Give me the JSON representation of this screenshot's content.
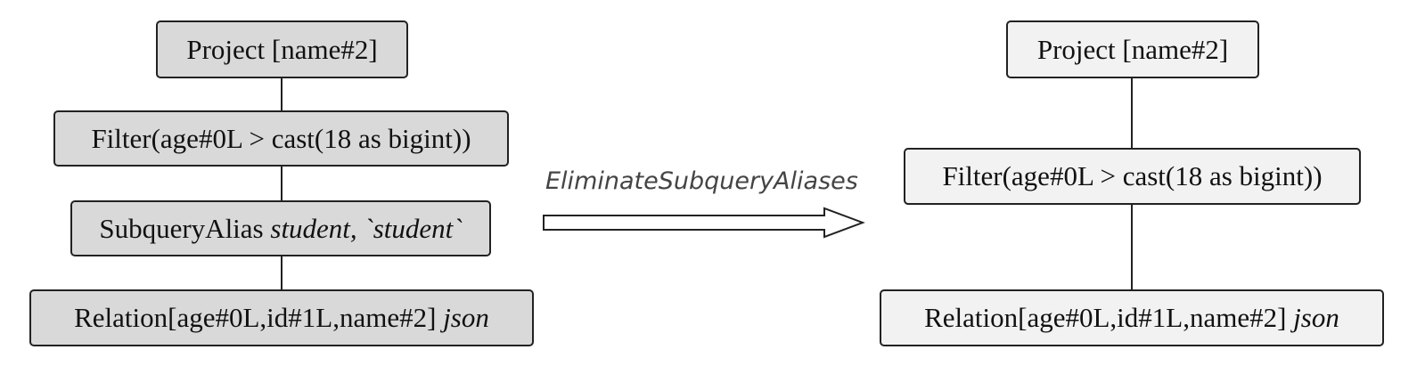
{
  "rule": {
    "label": "EliminateSubqueryAliases"
  },
  "before_plan": {
    "project": "Project [name#2]",
    "filter": "Filter(age#0L > cast(18 as bigint))",
    "subquery_alias": {
      "prefix": "SubqueryAlias ",
      "italic": "student, `student`"
    },
    "relation": {
      "prefix": "Relation[age#0L,id#1L,name#2] ",
      "italic": "json"
    }
  },
  "after_plan": {
    "project": "Project [name#2]",
    "filter": "Filter(age#0L > cast(18 as bigint))",
    "relation": {
      "prefix": "Relation[age#0L,id#1L,name#2] ",
      "italic": "json"
    }
  },
  "colors": {
    "before_fill": "#d9d9d9",
    "after_fill": "#f2f2f2",
    "stroke": "#222222"
  }
}
